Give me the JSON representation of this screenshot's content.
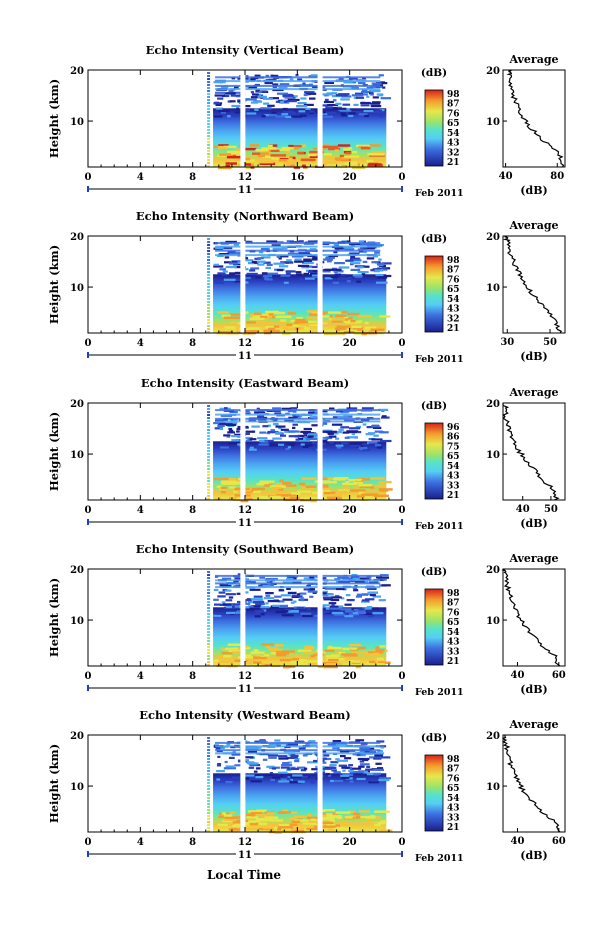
{
  "colors": {
    "scale": [
      "#1a1f8f",
      "#2a3fbf",
      "#3d6fe0",
      "#4aa3f0",
      "#55cdf5",
      "#57e3c8",
      "#9ae36a",
      "#e6e84a",
      "#f5c33a",
      "#f59a2d",
      "#ea5a22",
      "#d6221c"
    ]
  },
  "panels": [
    {
      "title": "Echo Intensity (Vertical Beam)",
      "colorbar_ticks": [
        "98",
        "87",
        "76",
        "65",
        "54",
        "43",
        "32",
        "21"
      ],
      "avg_ticks": [
        "40",
        "80"
      ],
      "chart_data": {
        "type": "heatmap",
        "title": "Echo Intensity (Vertical Beam)",
        "xlabel": "Local Time",
        "ylabel": "Height (km)",
        "xlim": [
          0,
          24
        ],
        "ylim": [
          1,
          20
        ],
        "xticks": [
          0,
          4,
          8,
          12,
          16,
          20,
          24
        ],
        "yticks": [
          10,
          20
        ],
        "data_start_hour": 9.1,
        "data_end_hour": 22.8,
        "gaps_hours": [
          11.8,
          17.7
        ],
        "profile_height_km": [
          1,
          3,
          5,
          7,
          9,
          11,
          13,
          15,
          17,
          19,
          20
        ],
        "profile_db": [
          84,
          83,
          75,
          66,
          58,
          53,
          49,
          46,
          44,
          43,
          42
        ],
        "colorbar_label": "(dB)",
        "colorbar_range": [
          21,
          98
        ],
        "avg_title": "Average",
        "avg_xlabel": "(dB)",
        "avg_xlim": [
          38,
          86
        ]
      }
    },
    {
      "title": "Echo Intensity (Northward Beam)",
      "colorbar_ticks": [
        "98",
        "87",
        "76",
        "65",
        "54",
        "43",
        "32",
        "21"
      ],
      "avg_ticks": [
        "30",
        "50"
      ],
      "chart_data": {
        "type": "heatmap",
        "title": "Echo Intensity (Northward Beam)",
        "xlabel": "Local Time",
        "ylabel": "Height (km)",
        "xlim": [
          0,
          24
        ],
        "ylim": [
          1,
          20
        ],
        "xticks": [
          0,
          4,
          8,
          12,
          16,
          20,
          24
        ],
        "yticks": [
          10,
          20
        ],
        "data_start_hour": 9.1,
        "data_end_hour": 22.8,
        "gaps_hours": [
          11.8,
          17.7
        ],
        "profile_height_km": [
          1,
          3,
          5,
          7,
          9,
          11,
          13,
          15,
          17,
          19,
          20
        ],
        "profile_db": [
          55,
          53,
          49,
          45,
          41,
          38,
          35,
          33,
          31,
          30,
          30
        ],
        "colorbar_label": "(dB)",
        "colorbar_range": [
          21,
          98
        ],
        "avg_title": "Average",
        "avg_xlabel": "(dB)",
        "avg_xlim": [
          28,
          57
        ]
      }
    },
    {
      "title": "Echo Intensity (Eastward Beam)",
      "colorbar_ticks": [
        "96",
        "86",
        "75",
        "65",
        "54",
        "43",
        "33",
        "21"
      ],
      "avg_ticks": [
        "40",
        "50"
      ],
      "chart_data": {
        "type": "heatmap",
        "title": "Echo Intensity (Eastward Beam)",
        "xlabel": "Local Time",
        "ylabel": "Height (km)",
        "xlim": [
          0,
          24
        ],
        "ylim": [
          1,
          20
        ],
        "xticks": [
          0,
          4,
          8,
          12,
          16,
          20,
          24
        ],
        "yticks": [
          10,
          20
        ],
        "data_start_hour": 9.1,
        "data_end_hour": 22.8,
        "gaps_hours": [
          11.8,
          17.7
        ],
        "profile_height_km": [
          1,
          3,
          5,
          7,
          9,
          11,
          13,
          15,
          17,
          19,
          20
        ],
        "profile_db": [
          52,
          51,
          47,
          44,
          41,
          38,
          36,
          35,
          34,
          34,
          33
        ],
        "colorbar_label": "(dB)",
        "colorbar_range": [
          21,
          96
        ],
        "avg_title": "Average",
        "avg_xlabel": "(dB)",
        "avg_xlim": [
          33,
          55
        ]
      }
    },
    {
      "title": "Echo Intensity (Southward Beam)",
      "colorbar_ticks": [
        "98",
        "87",
        "76",
        "65",
        "54",
        "43",
        "33",
        "21"
      ],
      "avg_ticks": [
        "40",
        "60"
      ],
      "chart_data": {
        "type": "heatmap",
        "title": "Echo Intensity (Southward Beam)",
        "xlabel": "Local Time",
        "ylabel": "Height (km)",
        "xlim": [
          0,
          24
        ],
        "ylim": [
          1,
          20
        ],
        "xticks": [
          0,
          4,
          8,
          12,
          16,
          20,
          24
        ],
        "yticks": [
          10,
          20
        ],
        "data_start_hour": 9.1,
        "data_end_hour": 22.8,
        "gaps_hours": [
          11.8,
          17.7
        ],
        "profile_height_km": [
          1,
          3,
          5,
          7,
          9,
          11,
          13,
          15,
          17,
          19,
          20
        ],
        "profile_db": [
          60,
          58,
          52,
          47,
          43,
          40,
          38,
          36,
          35,
          34,
          34
        ],
        "colorbar_label": "(dB)",
        "colorbar_range": [
          21,
          98
        ],
        "avg_title": "Average",
        "avg_xlabel": "(dB)",
        "avg_xlim": [
          33,
          63
        ]
      }
    },
    {
      "title": "Echo Intensity (Westward Beam)",
      "colorbar_ticks": [
        "98",
        "87",
        "76",
        "65",
        "54",
        "43",
        "33",
        "21"
      ],
      "avg_ticks": [
        "40",
        "60"
      ],
      "chart_data": {
        "type": "heatmap",
        "title": "Echo Intensity (Westward Beam)",
        "xlabel": "Local Time",
        "ylabel": "Height (km)",
        "xlim": [
          0,
          24
        ],
        "ylim": [
          1,
          20
        ],
        "xticks": [
          0,
          4,
          8,
          12,
          16,
          20,
          24
        ],
        "yticks": [
          10,
          20
        ],
        "data_start_hour": 9.1,
        "data_end_hour": 22.8,
        "gaps_hours": [
          11.8,
          17.7
        ],
        "profile_height_km": [
          1,
          3,
          5,
          7,
          9,
          11,
          13,
          15,
          17,
          19,
          20
        ],
        "profile_db": [
          60,
          58,
          52,
          47,
          43,
          40,
          38,
          36,
          35,
          34,
          34
        ],
        "colorbar_label": "(dB)",
        "colorbar_range": [
          21,
          98
        ],
        "avg_title": "Average",
        "avg_xlabel": "(dB)",
        "avg_xlim": [
          33,
          63
        ]
      }
    }
  ],
  "common": {
    "x_ticks": [
      "0",
      "4",
      "8",
      "12",
      "16",
      "20",
      "0"
    ],
    "y_ticks": [
      "10",
      "20"
    ],
    "avg_y_ticks": [
      "10",
      "20"
    ],
    "ylabel": "Height (km)",
    "avg_title": "Average",
    "avg_xlabel": "(dB)",
    "colorbar_label": "(dB)",
    "day_label": "11",
    "date_label": "Feb 2011",
    "footer_xlabel": "Local Time"
  }
}
